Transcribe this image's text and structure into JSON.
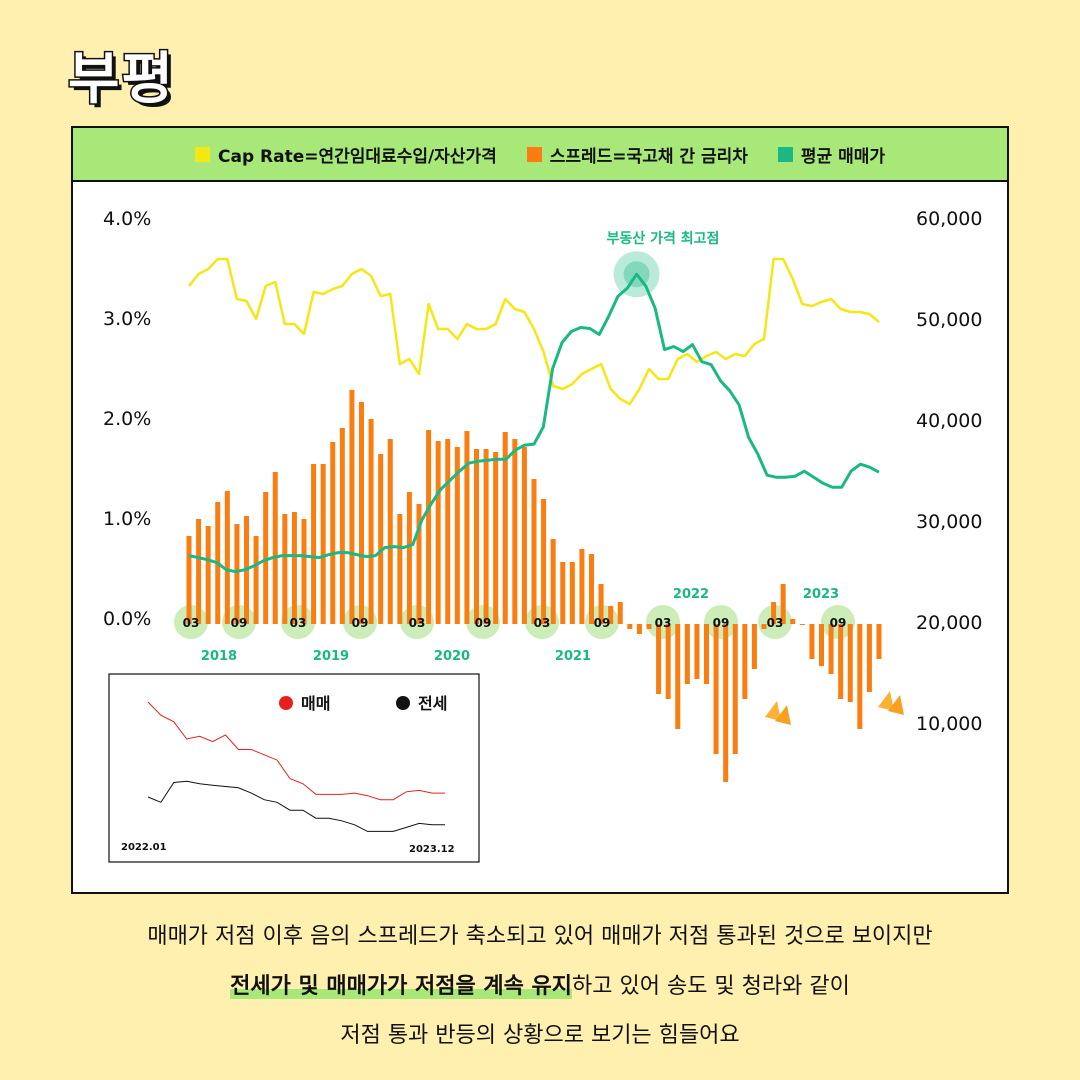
{
  "title": "부평",
  "legend": [
    {
      "label": "Cap Rate=연간임대료수입/자산가격",
      "color": "#f5e615"
    },
    {
      "label": "스프레드=국고채 간 금리차",
      "color": "#f97d10"
    },
    {
      "label": "평균 매매가",
      "color": "#19b884"
    }
  ],
  "caption": {
    "line1": "매매가 저점 이후 음의 스프레드가 축소되고 있어 매매가 저점 통과된 것으로 보이지만",
    "line2_highlight": "전세가 및 매매가가 저점을 계속 유지",
    "line2_rest": "하고 있어 송도 및 청라와 같이",
    "line3": "저점 통과 반등의 상황으로 보기는 힘들어요"
  },
  "chart_data": {
    "type": "bar+line",
    "left_axis": {
      "ticks": [
        "4.0%",
        "3.0%",
        "2.0%",
        "1.0%",
        "0.0%"
      ],
      "ylim": [
        -1.6,
        4.0
      ]
    },
    "right_axis": {
      "ticks": [
        "60,000",
        "50,000",
        "40,000",
        "30,000",
        "20,000",
        "10,000"
      ],
      "ylim": [
        0,
        60000
      ]
    },
    "month_markers": [
      "03",
      "09",
      "03",
      "09",
      "03",
      "09",
      "03",
      "09",
      "03",
      "09",
      "03",
      "09"
    ],
    "year_labels": [
      "2018",
      "2019",
      "2020",
      "2021",
      "2022",
      "2023"
    ],
    "annotation": "부동산 가격 최고점",
    "spread": [
      0.88,
      1.05,
      0.98,
      1.22,
      1.33,
      1.0,
      1.08,
      0.88,
      1.32,
      1.52,
      1.1,
      1.12,
      1.05,
      1.6,
      1.6,
      1.82,
      1.96,
      2.34,
      2.22,
      2.05,
      1.7,
      1.85,
      1.1,
      1.32,
      1.2,
      1.94,
      1.83,
      1.85,
      1.77,
      1.93,
      1.75,
      1.75,
      1.72,
      1.92,
      1.85,
      1.77,
      1.45,
      1.25,
      0.85,
      0.62,
      0.62,
      0.75,
      0.7,
      0.4,
      0.18,
      0.22,
      -0.05,
      -0.1,
      -0.05,
      -0.7,
      -0.75,
      -1.05,
      -0.6,
      -0.55,
      -0.6,
      -1.3,
      -1.58,
      -1.3,
      -0.75,
      -0.45,
      -0.05,
      0.22,
      0.4,
      0.05,
      0,
      -0.35,
      -0.42,
      -0.5,
      -0.75,
      -0.78,
      -1.05,
      -0.68,
      -0.35
    ],
    "cap_rate": [
      3.38,
      3.5,
      3.55,
      3.65,
      3.65,
      3.25,
      3.23,
      3.05,
      3.38,
      3.42,
      3.0,
      3.0,
      2.9,
      3.32,
      3.3,
      3.35,
      3.38,
      3.5,
      3.55,
      3.48,
      3.28,
      3.3,
      2.6,
      2.65,
      2.5,
      3.2,
      2.95,
      2.95,
      2.85,
      3.0,
      2.95,
      2.95,
      3.0,
      3.25,
      3.15,
      3.12,
      2.95,
      2.72,
      2.38,
      2.35,
      2.4,
      2.5,
      2.55,
      2.6,
      2.35,
      2.25,
      2.2,
      2.35,
      2.55,
      2.45,
      2.45,
      2.65,
      2.7,
      2.62,
      2.68,
      2.72,
      2.65,
      2.7,
      2.68,
      2.8,
      2.85,
      3.65,
      3.65,
      3.45,
      3.2,
      3.18,
      3.22,
      3.25,
      3.15,
      3.12,
      3.12,
      3.1,
      3.02
    ],
    "avg_price": [
      27200,
      27000,
      26800,
      26500,
      25800,
      25600,
      25800,
      26200,
      26700,
      27000,
      27200,
      27200,
      27200,
      27100,
      27000,
      27300,
      27500,
      27500,
      27300,
      27100,
      27200,
      28000,
      28100,
      28000,
      28300,
      30800,
      32400,
      33800,
      34700,
      35600,
      36400,
      36600,
      36700,
      36800,
      36800,
      37700,
      38200,
      38300,
      40000,
      45800,
      48400,
      49500,
      49900,
      49800,
      49200,
      51000,
      53000,
      53800,
      55200,
      54000,
      51800,
      47700,
      48000,
      47500,
      48200,
      46500,
      46200,
      44600,
      43600,
      42200,
      39000,
      37300,
      35200,
      35000,
      35000,
      35100,
      35600,
      35000,
      34400,
      34000,
      34000,
      35600,
      36300,
      36000,
      35500
    ],
    "inset": {
      "legend": [
        "매매",
        "전세"
      ],
      "colors": [
        "#e8201b",
        "#111111"
      ],
      "x_start": "2022.01",
      "x_end": "2023.12",
      "sale": [
        10,
        9,
        8.5,
        7.2,
        7.4,
        7.0,
        7.5,
        6.4,
        6.4,
        6.0,
        5.6,
        4.2,
        3.8,
        3.0,
        3.0,
        3.0,
        3.1,
        2.9,
        2.6,
        2.6,
        3.2,
        3.3,
        3.1,
        3.1
      ],
      "jeonse": [
        2.8,
        2.4,
        3.9,
        4.0,
        3.8,
        3.7,
        3.6,
        3.5,
        3.1,
        2.6,
        2.4,
        1.8,
        1.8,
        1.2,
        1.2,
        1.0,
        0.7,
        0.2,
        0.2,
        0.2,
        0.5,
        0.8,
        0.7,
        0.7
      ]
    }
  }
}
